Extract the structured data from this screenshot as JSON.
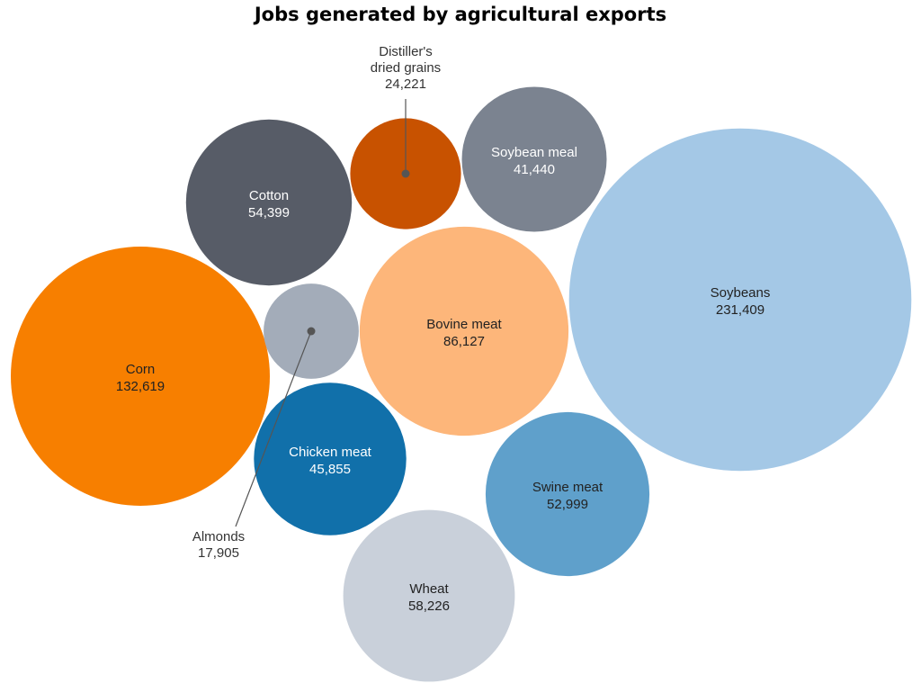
{
  "chart_data": {
    "type": "bubble",
    "title": "Jobs generated by agricultural exports",
    "items": [
      {
        "id": "soybeans",
        "name": "Soybeans",
        "value": 231409,
        "value_label": "231,409",
        "color": "#a4c8e6",
        "text_color": "#222222",
        "label_mode": "inside"
      },
      {
        "id": "corn",
        "name": "Corn",
        "value": 132619,
        "value_label": "132,619",
        "color": "#f77f00",
        "text_color": "#222222",
        "label_mode": "inside"
      },
      {
        "id": "bovine-meat",
        "name": "Bovine meat",
        "value": 86127,
        "value_label": "86,127",
        "color": "#fdb67a",
        "text_color": "#222222",
        "label_mode": "inside"
      },
      {
        "id": "wheat",
        "name": "Wheat",
        "value": 58226,
        "value_label": "58,226",
        "color": "#c9d0da",
        "text_color": "#222222",
        "label_mode": "inside"
      },
      {
        "id": "cotton",
        "name": "Cotton",
        "value": 54399,
        "value_label": "54,399",
        "color": "#575c67",
        "text_color": "#ffffff",
        "label_mode": "inside"
      },
      {
        "id": "swine-meat",
        "name": "Swine meat",
        "value": 52999,
        "value_label": "52,999",
        "color": "#5fa0cb",
        "text_color": "#222222",
        "label_mode": "inside"
      },
      {
        "id": "chicken-meat",
        "name": "Chicken meat",
        "value": 45855,
        "value_label": "45,855",
        "color": "#1170aa",
        "text_color": "#ffffff",
        "label_mode": "inside"
      },
      {
        "id": "soybean-meal",
        "name": "Soybean meal",
        "value": 41440,
        "value_label": "41,440",
        "color": "#7b8390",
        "text_color": "#ffffff",
        "label_mode": "inside"
      },
      {
        "id": "distillers-dried-grains",
        "name": "Distiller's dried grains",
        "name_lines": [
          "Distiller's",
          "dried grains"
        ],
        "value": 24221,
        "value_label": "24,221",
        "color": "#c85200",
        "text_color": "#222222",
        "label_mode": "callout"
      },
      {
        "id": "almonds",
        "name": "Almonds",
        "value": 17905,
        "value_label": "17,905",
        "color": "#a3acb9",
        "text_color": "#222222",
        "label_mode": "callout"
      }
    ]
  }
}
